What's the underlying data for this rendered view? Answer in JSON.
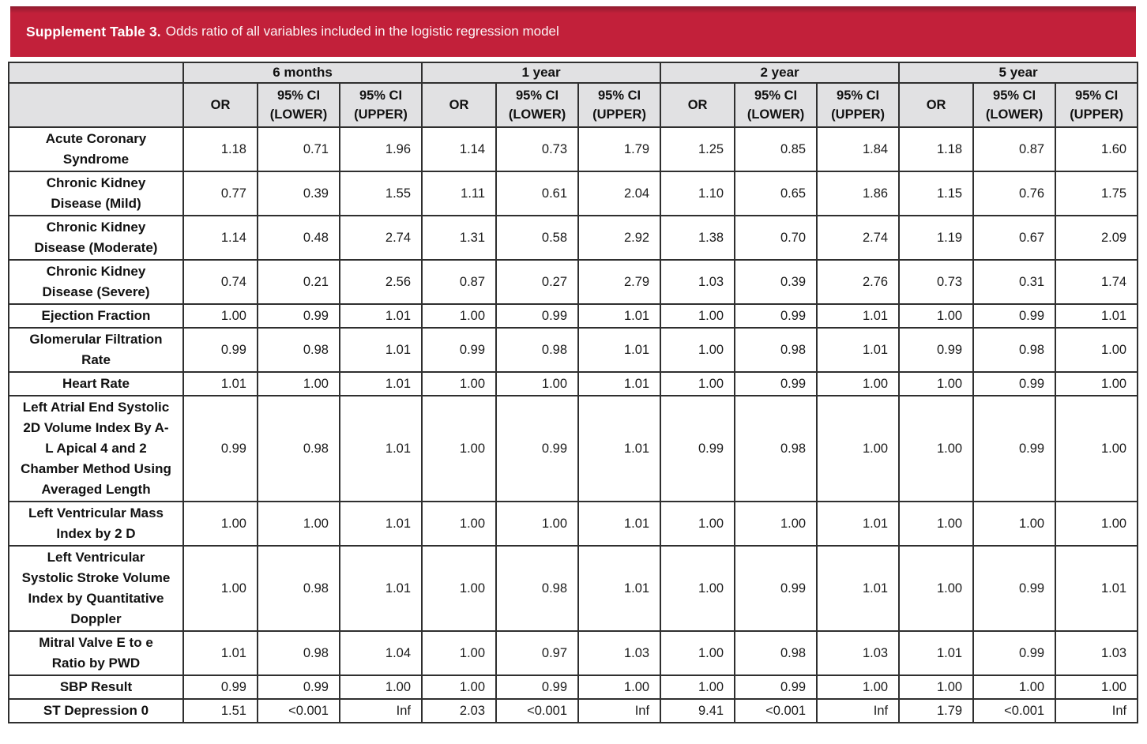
{
  "header": {
    "title_bold": "Supplement Table 3.",
    "title_rest": "Odds ratio of all variables included in the logistic regression model"
  },
  "colors": {
    "banner_red": "#C2203A",
    "banner_edge": "#8F1C2F",
    "header_gray": "#E1E1E3",
    "border_dark": "#2F2F2F"
  },
  "table": {
    "period_groups": [
      "6 months",
      "1 year",
      "2 year",
      "5 year"
    ],
    "metric_headers": [
      "OR",
      "95% CI (LOWER)",
      "95% CI (UPPER)"
    ],
    "rows": [
      {
        "label": "Acute Coronary Syndrome",
        "values": [
          "1.18",
          "0.71",
          "1.96",
          "1.14",
          "0.73",
          "1.79",
          "1.25",
          "0.85",
          "1.84",
          "1.18",
          "0.87",
          "1.60"
        ]
      },
      {
        "label": "Chronic Kidney Disease (Mild)",
        "values": [
          "0.77",
          "0.39",
          "1.55",
          "1.11",
          "0.61",
          "2.04",
          "1.10",
          "0.65",
          "1.86",
          "1.15",
          "0.76",
          "1.75"
        ]
      },
      {
        "label": "Chronic Kidney Disease (Moderate)",
        "values": [
          "1.14",
          "0.48",
          "2.74",
          "1.31",
          "0.58",
          "2.92",
          "1.38",
          "0.70",
          "2.74",
          "1.19",
          "0.67",
          "2.09"
        ]
      },
      {
        "label": "Chronic Kidney Disease (Severe)",
        "values": [
          "0.74",
          "0.21",
          "2.56",
          "0.87",
          "0.27",
          "2.79",
          "1.03",
          "0.39",
          "2.76",
          "0.73",
          "0.31",
          "1.74"
        ]
      },
      {
        "label": "Ejection Fraction",
        "values": [
          "1.00",
          "0.99",
          "1.01",
          "1.00",
          "0.99",
          "1.01",
          "1.00",
          "0.99",
          "1.01",
          "1.00",
          "0.99",
          "1.01"
        ]
      },
      {
        "label": "Glomerular Filtration Rate",
        "values": [
          "0.99",
          "0.98",
          "1.01",
          "0.99",
          "0.98",
          "1.01",
          "1.00",
          "0.98",
          "1.01",
          "0.99",
          "0.98",
          "1.00"
        ]
      },
      {
        "label": "Heart Rate",
        "values": [
          "1.01",
          "1.00",
          "1.01",
          "1.00",
          "1.00",
          "1.01",
          "1.00",
          "0.99",
          "1.00",
          "1.00",
          "0.99",
          "1.00"
        ]
      },
      {
        "label": "Left Atrial End Systolic 2D Volume Index By A-L Apical 4 and 2 Chamber Method Using Averaged Length",
        "values": [
          "0.99",
          "0.98",
          "1.01",
          "1.00",
          "0.99",
          "1.01",
          "0.99",
          "0.98",
          "1.00",
          "1.00",
          "0.99",
          "1.00"
        ]
      },
      {
        "label": "Left Ventricular Mass Index by 2 D",
        "values": [
          "1.00",
          "1.00",
          "1.01",
          "1.00",
          "1.00",
          "1.01",
          "1.00",
          "1.00",
          "1.01",
          "1.00",
          "1.00",
          "1.00"
        ]
      },
      {
        "label": "Left Ventricular Systolic Stroke Volume Index by Quantitative Doppler",
        "values": [
          "1.00",
          "0.98",
          "1.01",
          "1.00",
          "0.98",
          "1.01",
          "1.00",
          "0.99",
          "1.01",
          "1.00",
          "0.99",
          "1.01"
        ]
      },
      {
        "label": "Mitral Valve E to e Ratio by PWD",
        "values": [
          "1.01",
          "0.98",
          "1.04",
          "1.00",
          "0.97",
          "1.03",
          "1.00",
          "0.98",
          "1.03",
          "1.01",
          "0.99",
          "1.03"
        ]
      },
      {
        "label": "SBP Result",
        "values": [
          "0.99",
          "0.99",
          "1.00",
          "1.00",
          "0.99",
          "1.00",
          "1.00",
          "0.99",
          "1.00",
          "1.00",
          "1.00",
          "1.00"
        ]
      },
      {
        "label": "ST Depression 0",
        "values": [
          "1.51",
          "<0.001",
          "Inf",
          "2.03",
          "<0.001",
          "Inf",
          "9.41",
          "<0.001",
          "Inf",
          "1.79",
          "<0.001",
          "Inf"
        ]
      }
    ]
  }
}
